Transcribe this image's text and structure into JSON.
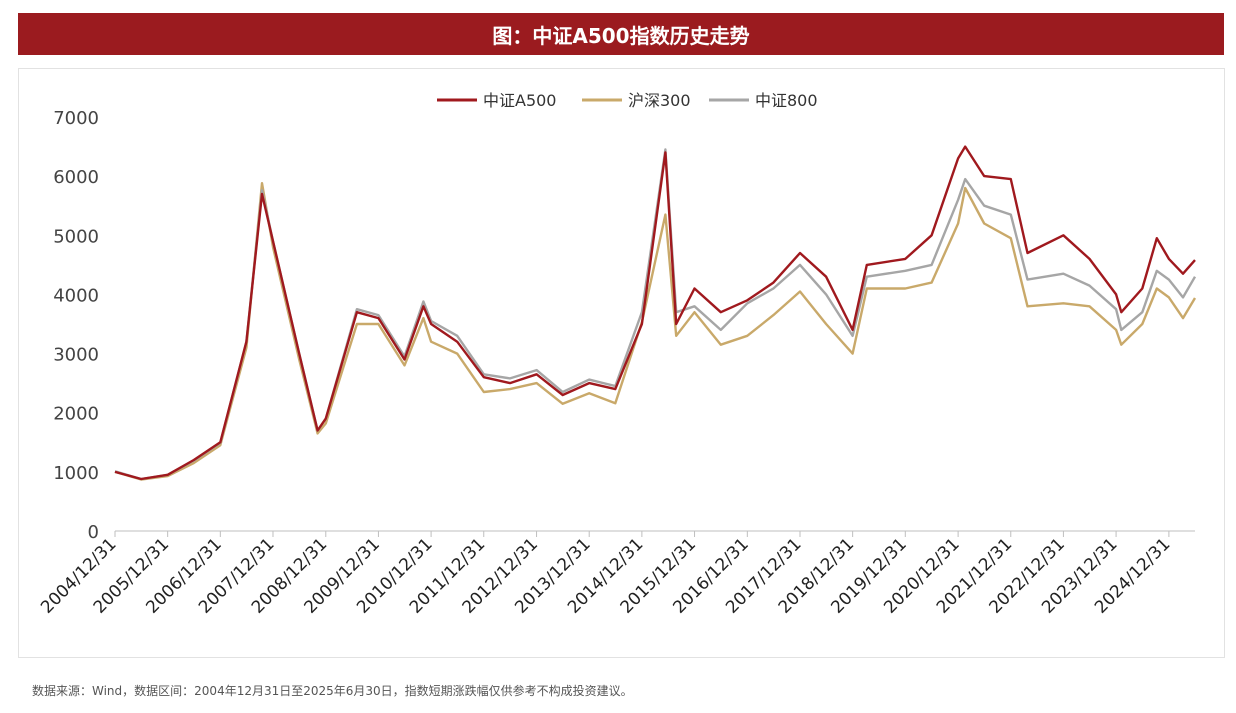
{
  "title": "图：中证A500指数历史走势",
  "footnote": "数据来源：Wind，数据区间：2004年12月31日至2025年6月30日，指数短期涨跌幅仅供参考不构成投资建议。",
  "chart_data": {
    "type": "line",
    "title": "图：中证A500指数历史走势",
    "xlabel": "",
    "ylabel": "",
    "ylim": [
      0,
      7000
    ],
    "yticks": [
      0,
      1000,
      2000,
      3000,
      4000,
      5000,
      6000,
      7000
    ],
    "grid": false,
    "legend_position": "top-center",
    "x_tick_labels": [
      "2004/12/31",
      "2005/12/31",
      "2006/12/31",
      "2007/12/31",
      "2008/12/31",
      "2009/12/31",
      "2010/12/31",
      "2011/12/31",
      "2012/12/31",
      "2013/12/31",
      "2014/12/31",
      "2015/12/31",
      "2016/12/31",
      "2017/12/31",
      "2018/12/31",
      "2019/12/31",
      "2020/12/31",
      "2021/12/31",
      "2022/12/31",
      "2023/12/31",
      "2024/12/31"
    ],
    "x": [
      "2004-12-31",
      "2005-06-30",
      "2005-12-31",
      "2006-06-30",
      "2006-12-31",
      "2007-06-30",
      "2007-10-16",
      "2007-12-31",
      "2008-06-30",
      "2008-11-04",
      "2008-12-31",
      "2009-08-04",
      "2009-12-31",
      "2010-06-30",
      "2010-11-08",
      "2010-12-31",
      "2011-06-30",
      "2011-12-31",
      "2012-06-30",
      "2012-12-31",
      "2013-06-30",
      "2013-12-31",
      "2014-06-30",
      "2014-12-31",
      "2015-06-12",
      "2015-08-26",
      "2015-12-31",
      "2016-06-30",
      "2016-12-31",
      "2017-06-30",
      "2017-12-31",
      "2018-06-30",
      "2018-12-31",
      "2019-04-08",
      "2019-12-31",
      "2020-06-30",
      "2020-12-31",
      "2021-02-18",
      "2021-06-30",
      "2021-12-31",
      "2022-04-26",
      "2022-12-31",
      "2023-06-30",
      "2023-12-31",
      "2024-02-05",
      "2024-06-30",
      "2024-10-08",
      "2024-12-31",
      "2025-04-08",
      "2025-06-30"
    ],
    "series": [
      {
        "name": "中证A500",
        "color": "#a0191e",
        "values": [
          1000,
          880,
          950,
          1200,
          1500,
          3200,
          5700,
          4900,
          3000,
          1700,
          1900,
          3700,
          3600,
          2900,
          3800,
          3500,
          3200,
          2600,
          2500,
          2650,
          2300,
          2500,
          2400,
          3500,
          6400,
          3500,
          4100,
          3700,
          3900,
          4200,
          4700,
          4300,
          3400,
          4500,
          4600,
          5000,
          6300,
          6500,
          6000,
          5950,
          4700,
          5000,
          4600,
          4000,
          3700,
          4100,
          4950,
          4600,
          4350,
          4580
        ]
      },
      {
        "name": "沪深300",
        "color": "#c9a96a",
        "values": [
          1000,
          870,
          930,
          1150,
          1450,
          3100,
          5880,
          4800,
          2900,
          1650,
          1820,
          3500,
          3500,
          2800,
          3600,
          3200,
          3000,
          2350,
          2400,
          2500,
          2150,
          2330,
          2160,
          3530,
          5350,
          3300,
          3700,
          3150,
          3300,
          3650,
          4050,
          3500,
          3000,
          4100,
          4100,
          4200,
          5200,
          5800,
          5200,
          4950,
          3800,
          3850,
          3800,
          3400,
          3150,
          3500,
          4100,
          3950,
          3600,
          3940
        ]
      },
      {
        "name": "中证800",
        "color": "#a6a6a6",
        "values": [
          1010,
          880,
          950,
          1190,
          1490,
          3200,
          5760,
          4900,
          3000,
          1700,
          1900,
          3750,
          3650,
          2950,
          3880,
          3550,
          3300,
          2650,
          2580,
          2720,
          2350,
          2560,
          2450,
          3700,
          6450,
          3700,
          3800,
          3400,
          3850,
          4100,
          4500,
          4000,
          3300,
          4300,
          4400,
          4500,
          5600,
          5950,
          5500,
          5350,
          4250,
          4350,
          4150,
          3750,
          3400,
          3700,
          4400,
          4250,
          3950,
          4300
        ]
      }
    ]
  }
}
